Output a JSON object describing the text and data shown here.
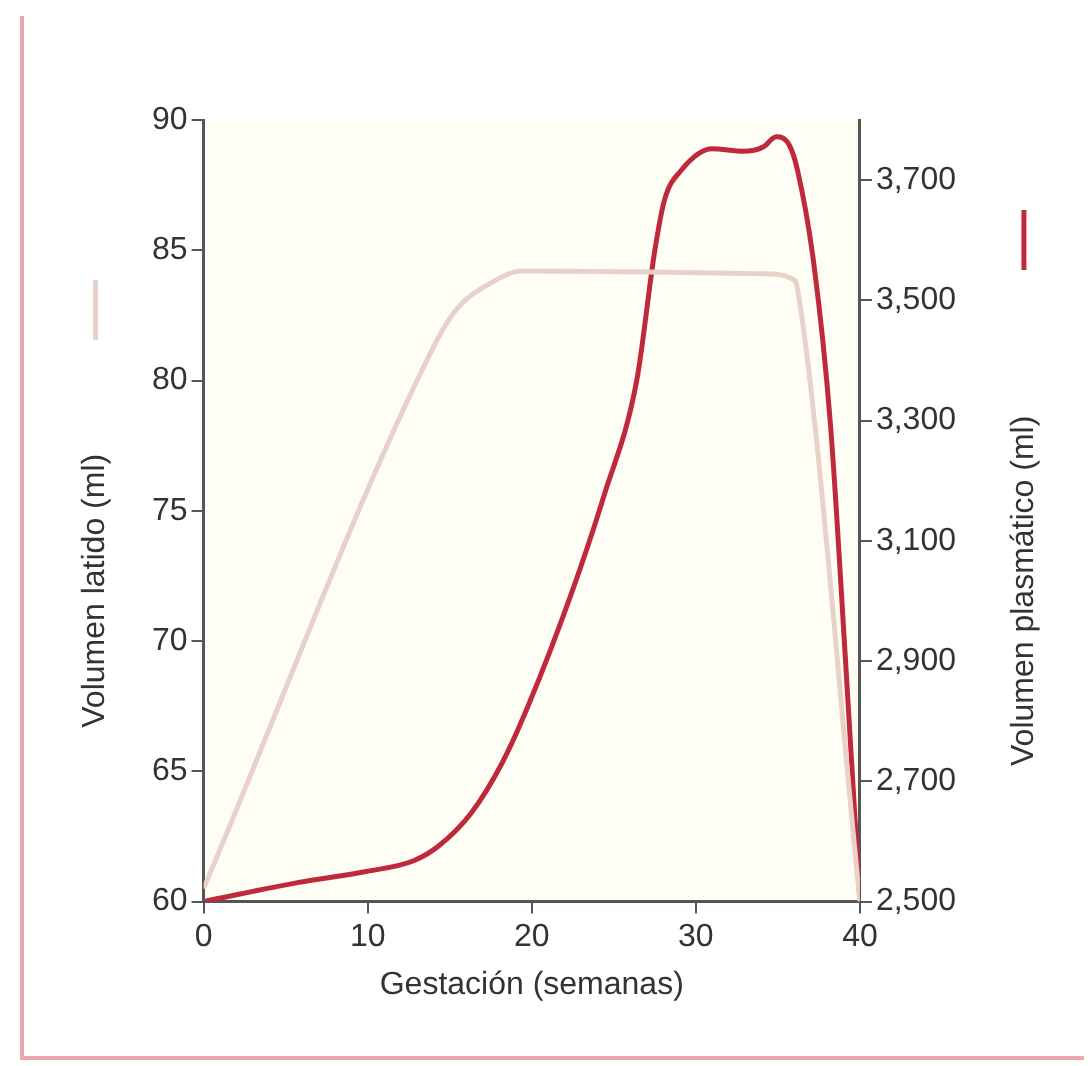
{
  "chart_data": {
    "type": "line",
    "xlabel": "Gestación (semanas)",
    "ylabel": "Volumen latido (ml)",
    "y2label": "Volumen plasmático (ml)",
    "xlim": [
      0,
      40
    ],
    "xticks": [
      0,
      10,
      20,
      30,
      40
    ],
    "ylim": [
      60,
      90
    ],
    "yticks": [
      60,
      65,
      70,
      75,
      80,
      85,
      90
    ],
    "y2lim": [
      2500,
      3800
    ],
    "y2ticks": [
      {
        "value": 2500,
        "label": "2,500"
      },
      {
        "value": 2700,
        "label": "2,700"
      },
      {
        "value": 2900,
        "label": "2,900"
      },
      {
        "value": 3100,
        "label": "3,100"
      },
      {
        "value": 3300,
        "label": "3,300"
      },
      {
        "value": 3500,
        "label": "3,500"
      },
      {
        "value": 3700,
        "label": "3,700"
      }
    ],
    "grid": false,
    "legend": false,
    "marker": "none",
    "line_style": "solid",
    "series": [
      {
        "color": "#e8d2c8",
        "x": [
          0,
          14.1,
          15.5,
          17.4,
          19.4,
          34.1,
          35.9,
          36.2,
          40
        ],
        "values": [
          60.5,
          81.4,
          82.8,
          83.7,
          84.2,
          84.1,
          83.9,
          83.5,
          60
        ]
      },
      {
        "color": "#c0283c",
        "axis": "y2",
        "x": [
          0,
          5.8,
          9.9,
          12.8,
          14.3,
          16.3,
          18.2,
          19.8,
          22.5,
          24.4,
          26.4,
          27.5,
          28.1,
          29.1,
          31,
          32.9,
          34.1,
          34.9,
          35.7,
          36.2,
          37.2,
          38.2,
          39.1,
          40
        ],
        "values": [
          2500,
          2532,
          2550,
          2568,
          2592,
          2647,
          2731,
          2827,
          3019,
          3175,
          3367,
          3583,
          3668,
          3716,
          3752,
          3748,
          3755,
          3772,
          3758,
          3716,
          3559,
          3295,
          2911,
          2500
        ]
      }
    ]
  }
}
